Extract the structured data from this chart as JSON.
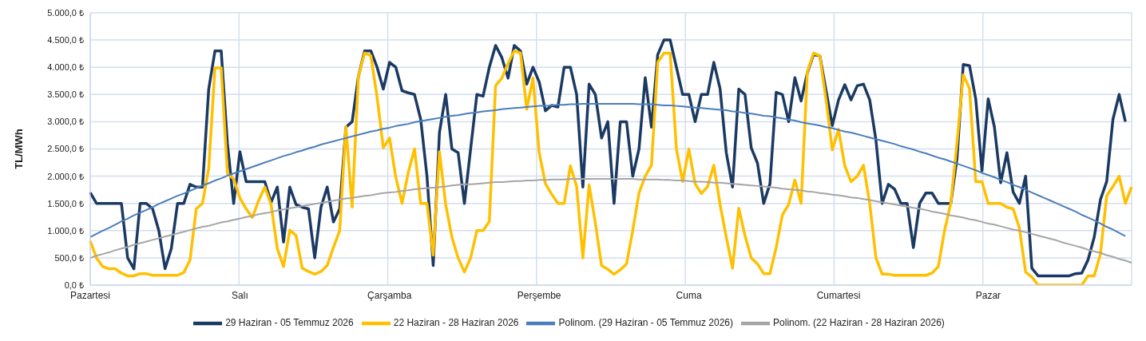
{
  "chart_data": {
    "type": "line",
    "ylabel": "TL/MWh",
    "categories": [
      "Pazartesi",
      null,
      null,
      null,
      null,
      null,
      null,
      null,
      null,
      null,
      null,
      null,
      null,
      null,
      null,
      null,
      null,
      null,
      null,
      null,
      null,
      null,
      null,
      null,
      "Salı",
      null,
      null,
      null,
      null,
      null,
      null,
      null,
      null,
      null,
      null,
      null,
      null,
      null,
      null,
      null,
      null,
      null,
      null,
      null,
      null,
      null,
      null,
      null,
      "Çarşamba",
      null,
      null,
      null,
      null,
      null,
      null,
      null,
      null,
      null,
      null,
      null,
      null,
      null,
      null,
      null,
      null,
      null,
      null,
      null,
      null,
      null,
      null,
      null,
      "Perşembe",
      null,
      null,
      null,
      null,
      null,
      null,
      null,
      null,
      null,
      null,
      null,
      null,
      null,
      null,
      null,
      null,
      null,
      null,
      null,
      null,
      null,
      null,
      null,
      "Cuma",
      null,
      null,
      null,
      null,
      null,
      null,
      null,
      null,
      null,
      null,
      null,
      null,
      null,
      null,
      null,
      null,
      null,
      null,
      null,
      null,
      null,
      null,
      null,
      "Cumartesi",
      null,
      null,
      null,
      null,
      null,
      null,
      null,
      null,
      null,
      null,
      null,
      null,
      null,
      null,
      null,
      null,
      null,
      null,
      null,
      null,
      null,
      null,
      null,
      "Pazar",
      null,
      null,
      null,
      null,
      null,
      null,
      null,
      null,
      null,
      null,
      null,
      null,
      null,
      null,
      null,
      null,
      null,
      null,
      null,
      null,
      null,
      null,
      null
    ],
    "ylim": [
      0,
      5000
    ],
    "yticks": [
      {
        "value": 0,
        "label": "0,0 ₺"
      },
      {
        "value": 500,
        "label": "500,0 ₺"
      },
      {
        "value": 1000,
        "label": "1.000,0 ₺"
      },
      {
        "value": 1500,
        "label": "1.500,0 ₺"
      },
      {
        "value": 2000,
        "label": "2.000,0 ₺"
      },
      {
        "value": 2500,
        "label": "2.500,0 ₺"
      },
      {
        "value": 3000,
        "label": "3.000,0 ₺"
      },
      {
        "value": 3500,
        "label": "3.500,0 ₺"
      },
      {
        "value": 4000,
        "label": "4.000,0 ₺"
      },
      {
        "value": 4500,
        "label": "4.500,0 ₺"
      },
      {
        "value": 5000,
        "label": "5.000,0 ₺"
      }
    ],
    "grid": true,
    "legend": "bottom",
    "marker": "none",
    "series": [
      {
        "name": "29 Haziran - 05 Temmuz 2026",
        "color": "#1b3a63",
        "values": [
          1700,
          1500,
          1500,
          1500,
          1500,
          1500,
          500,
          300,
          1500,
          1500,
          1400,
          1000,
          300,
          670,
          1500,
          1500,
          1850,
          1800,
          1800,
          3600,
          4300,
          4300,
          2600,
          1500,
          2450,
          1900,
          1900,
          1900,
          1900,
          1520,
          1800,
          790,
          1800,
          1480,
          1430,
          1400,
          500,
          1430,
          1800,
          1160,
          1400,
          2900,
          3000,
          3830,
          4300,
          4300,
          4000,
          3600,
          4090,
          4000,
          3570,
          3530,
          3500,
          3040,
          2000,
          360,
          2800,
          3500,
          2500,
          2430,
          1500,
          2500,
          3500,
          3470,
          4000,
          4400,
          4180,
          3800,
          4400,
          4300,
          3690,
          4000,
          3730,
          3200,
          3300,
          3270,
          4000,
          4000,
          3500,
          1800,
          3690,
          3500,
          2700,
          3000,
          1500,
          3000,
          3000,
          2000,
          2500,
          3810,
          2900,
          4230,
          4500,
          4500,
          4000,
          3500,
          3500,
          3000,
          3500,
          3500,
          4090,
          3610,
          2430,
          1800,
          3600,
          3500,
          2520,
          2240,
          1500,
          1860,
          3540,
          3500,
          3000,
          3810,
          3380,
          3900,
          4230,
          4210,
          3570,
          2930,
          3400,
          3680,
          3400,
          3660,
          3690,
          3400,
          2660,
          1500,
          1850,
          1760,
          1500,
          1500,
          690,
          1500,
          1690,
          1690,
          1500,
          1500,
          1500,
          2330,
          4050,
          4030,
          3420,
          2100,
          3420,
          2900,
          1880,
          2430,
          1710,
          1500,
          2000,
          310,
          170,
          170,
          170,
          170,
          170,
          170,
          210,
          220,
          460,
          880,
          1570,
          1900,
          3040,
          3500,
          3000,
          null
        ]
      },
      {
        "name": "22 Haziran - 28 Haziran 2026",
        "color": "#ffc000",
        "values": [
          810,
          500,
          340,
          300,
          300,
          220,
          170,
          170,
          210,
          210,
          180,
          180,
          180,
          180,
          180,
          230,
          460,
          1400,
          1500,
          2140,
          3990,
          3990,
          2050,
          1950,
          1600,
          1400,
          1240,
          1550,
          1800,
          1480,
          670,
          340,
          1010,
          910,
          310,
          250,
          200,
          250,
          360,
          690,
          1000,
          2910,
          1430,
          3830,
          4260,
          4210,
          3450,
          2520,
          2700,
          1980,
          1500,
          2070,
          2500,
          1500,
          1500,
          550,
          2450,
          1480,
          880,
          500,
          240,
          500,
          1000,
          1000,
          1170,
          3660,
          3800,
          4070,
          4300,
          4260,
          3230,
          3800,
          2430,
          1860,
          1670,
          1500,
          1500,
          2190,
          1810,
          500,
          1840,
          1140,
          360,
          290,
          200,
          280,
          390,
          1000,
          1690,
          2000,
          2200,
          4090,
          4260,
          4260,
          2500,
          1900,
          2500,
          1860,
          1680,
          1810,
          2200,
          1480,
          880,
          310,
          1410,
          910,
          500,
          390,
          210,
          210,
          690,
          1290,
          1480,
          1930,
          1500,
          3920,
          4260,
          4210,
          3400,
          2480,
          2860,
          2190,
          1900,
          2000,
          2200,
          1500,
          500,
          200,
          200,
          180,
          180,
          180,
          180,
          180,
          180,
          220,
          340,
          1000,
          1500,
          2620,
          3860,
          3610,
          1900,
          1900,
          1500,
          1500,
          1500,
          1430,
          1400,
          1050,
          240,
          150,
          0,
          0,
          0,
          0,
          0,
          0,
          0,
          0,
          170,
          170,
          570,
          1640,
          1810,
          2000,
          1500,
          1800
        ]
      },
      {
        "name": "Polinom. (29 Haziran - 05 Temmuz 2026)",
        "color": "#4a7ebb",
        "values": [
          880,
          940,
          1000,
          1050,
          1110,
          1170,
          1220,
          1280,
          1330,
          1380,
          1430,
          1490,
          1540,
          1590,
          1640,
          1680,
          1730,
          1780,
          1830,
          1870,
          1920,
          1960,
          2010,
          2050,
          2090,
          2130,
          2170,
          2210,
          2250,
          2290,
          2330,
          2370,
          2400,
          2440,
          2470,
          2510,
          2540,
          2580,
          2610,
          2640,
          2670,
          2700,
          2730,
          2760,
          2790,
          2820,
          2840,
          2870,
          2890,
          2920,
          2940,
          2960,
          2990,
          3010,
          3030,
          3050,
          3070,
          3090,
          3110,
          3120,
          3140,
          3160,
          3170,
          3190,
          3200,
          3210,
          3230,
          3240,
          3250,
          3260,
          3270,
          3280,
          3290,
          3290,
          3300,
          3310,
          3310,
          3320,
          3320,
          3330,
          3330,
          3330,
          3330,
          3330,
          3330,
          3330,
          3330,
          3330,
          3320,
          3320,
          3320,
          3310,
          3300,
          3300,
          3290,
          3280,
          3270,
          3260,
          3250,
          3240,
          3230,
          3220,
          3210,
          3190,
          3180,
          3160,
          3150,
          3130,
          3110,
          3100,
          3080,
          3060,
          3040,
          3020,
          2990,
          2970,
          2950,
          2930,
          2900,
          2880,
          2850,
          2820,
          2800,
          2770,
          2740,
          2710,
          2680,
          2650,
          2620,
          2590,
          2550,
          2520,
          2490,
          2450,
          2420,
          2380,
          2340,
          2310,
          2270,
          2230,
          2190,
          2150,
          2110,
          2060,
          2020,
          1980,
          1930,
          1890,
          1840,
          1800,
          1750,
          1700,
          1650,
          1600,
          1550,
          1500,
          1450,
          1400,
          1350,
          1290,
          1240,
          1190,
          1130,
          1070,
          1020,
          960,
          900,
          null
        ]
      },
      {
        "name": "Polinom. (22 Haziran - 28 Haziran 2026)",
        "color": "#a5a5a5",
        "values": [
          500,
          540,
          570,
          600,
          640,
          670,
          700,
          740,
          770,
          800,
          830,
          860,
          890,
          920,
          950,
          980,
          1010,
          1040,
          1070,
          1090,
          1120,
          1150,
          1170,
          1200,
          1220,
          1250,
          1270,
          1300,
          1320,
          1340,
          1370,
          1390,
          1410,
          1430,
          1450,
          1470,
          1490,
          1510,
          1530,
          1550,
          1570,
          1590,
          1600,
          1620,
          1640,
          1650,
          1670,
          1690,
          1700,
          1710,
          1730,
          1740,
          1760,
          1770,
          1780,
          1790,
          1800,
          1810,
          1830,
          1840,
          1850,
          1850,
          1860,
          1870,
          1880,
          1890,
          1890,
          1900,
          1910,
          1910,
          1920,
          1920,
          1930,
          1930,
          1940,
          1940,
          1940,
          1950,
          1950,
          1950,
          1950,
          1950,
          1950,
          1950,
          1950,
          1950,
          1950,
          1950,
          1940,
          1940,
          1940,
          1940,
          1930,
          1930,
          1920,
          1920,
          1910,
          1900,
          1900,
          1890,
          1880,
          1880,
          1870,
          1860,
          1850,
          1840,
          1830,
          1820,
          1810,
          1800,
          1790,
          1770,
          1760,
          1750,
          1740,
          1720,
          1710,
          1690,
          1680,
          1660,
          1650,
          1630,
          1610,
          1600,
          1580,
          1560,
          1540,
          1520,
          1500,
          1480,
          1460,
          1440,
          1420,
          1400,
          1380,
          1350,
          1330,
          1310,
          1280,
          1260,
          1240,
          1210,
          1190,
          1160,
          1130,
          1110,
          1080,
          1050,
          1020,
          1000,
          970,
          940,
          910,
          880,
          850,
          820,
          780,
          750,
          720,
          690,
          650,
          620,
          590,
          550,
          520,
          480,
          450,
          410
        ]
      }
    ]
  }
}
